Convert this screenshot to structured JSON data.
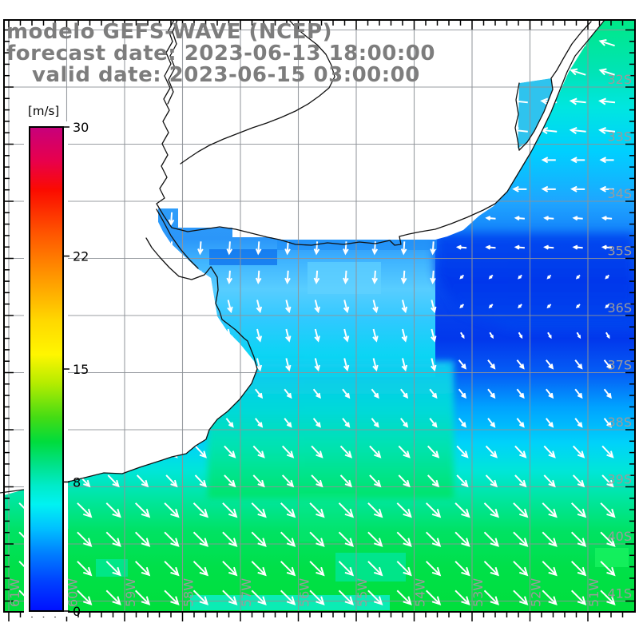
{
  "title": {
    "line1": "modelo GEFS-WAVE (NCEP)",
    "line2": "forecast date: 2023-06-13 18:00:00",
    "line3": "valid date: 2023-06-15 03:00:00",
    "color": "#7d7d7d"
  },
  "colorbar": {
    "unit_label": "[m/s]",
    "min": 0,
    "max": 30,
    "tick_values": [
      30,
      22,
      15,
      8,
      0
    ],
    "gradient": [
      [
        30,
        "#C7007C"
      ],
      [
        27.9,
        "#E8004C"
      ],
      [
        26.1,
        "#FB0B00"
      ],
      [
        23.4,
        "#FF5500"
      ],
      [
        21,
        "#FF9000"
      ],
      [
        18,
        "#FFD800"
      ],
      [
        15.9,
        "#FFF600"
      ],
      [
        14.1,
        "#B4EC00"
      ],
      [
        12,
        "#44DC14"
      ],
      [
        10.5,
        "#00DC3C"
      ],
      [
        9,
        "#00E28C"
      ],
      [
        7.8,
        "#00EBC8"
      ],
      [
        6.6,
        "#00F2F2"
      ],
      [
        5.1,
        "#00C0FF"
      ],
      [
        3.6,
        "#0080FF"
      ],
      [
        1.8,
        "#0040FF"
      ],
      [
        0,
        "#0010FF"
      ]
    ]
  },
  "axes": {
    "lon_labels": [
      "61W",
      "60W",
      "59W",
      "58W",
      "57W",
      "56W",
      "55W",
      "54W",
      "53W",
      "52W",
      "51W"
    ],
    "lat_labels": [
      "32S",
      "33S",
      "34S",
      "35S",
      "36S",
      "37S",
      "38S",
      "39S",
      "40S",
      "41S"
    ],
    "label_color": "#9b9b9b",
    "grid_color": "#8f9398",
    "frame_color": "#000000"
  },
  "chart_data": {
    "type": "heatmap",
    "title": "modelo GEFS-WAVE (NCEP)",
    "units": "m/s",
    "scale": {
      "min": 0,
      "max": 30,
      "ticks": [
        0,
        8,
        15,
        22,
        30
      ]
    },
    "region": "Rio de la Plata / SW Atlantic coast, 61W-51W, 31S-41.5S",
    "note": "speeds estimated from colorbar; arrows show direction",
    "field_gradient": [
      [
        0.0,
        "#00E887"
      ],
      [
        0.088,
        "#00E4B6"
      ],
      [
        0.148,
        "#00E6E0"
      ],
      [
        0.223,
        "#00CFFF"
      ],
      [
        0.31,
        "#1FA4FF"
      ],
      [
        0.385,
        "#0E72F8"
      ],
      [
        0.452,
        "#0548F0"
      ],
      [
        0.54,
        "#0238EC"
      ],
      [
        0.6,
        "#0560F6"
      ],
      [
        0.654,
        "#00A2FF"
      ],
      [
        0.715,
        "#00D2FA"
      ],
      [
        0.762,
        "#00E6D8"
      ],
      [
        0.81,
        "#00E69E"
      ],
      [
        0.864,
        "#00E263"
      ],
      [
        0.924,
        "#00E049"
      ],
      [
        1.0,
        "#00DF3C"
      ]
    ],
    "overlays": {
      "estuary_plume": [
        [
          0.0,
          "#2E9EFB"
        ],
        [
          0.2,
          "#2B96F9"
        ],
        [
          0.34,
          "#41B6FF"
        ],
        [
          0.49,
          "#58CDFF"
        ],
        [
          0.67,
          "#2FC9FF"
        ],
        [
          0.84,
          "#10D3F6"
        ],
        [
          1.0,
          "#03DAEE"
        ]
      ],
      "southwest_transition": [
        [
          0.0,
          "#14CDF4"
        ],
        [
          0.35,
          "#00DCD8"
        ],
        [
          0.65,
          "#00E4A8"
        ],
        [
          1.0,
          "#00E466"
        ]
      ],
      "offshore_low_core": [
        [
          0.0,
          "#0345EF"
        ],
        [
          0.5,
          "#0235EA"
        ],
        [
          1.0,
          "#0448F0"
        ]
      ]
    },
    "wind_field_regions": [
      {
        "name": "estuary-upper",
        "w": 58.7,
        "e": 53.3,
        "n": 33.87,
        "s": 35.78,
        "dir_deg": 94,
        "len": 15,
        "speed_ms": 5
      },
      {
        "name": "estuary-outer",
        "w": 58.7,
        "e": 53.3,
        "n": 35.78,
        "s": 37.03,
        "dir_deg": 76,
        "len": 15,
        "speed_ms": 6
      },
      {
        "name": "ne-31-32s",
        "w": 54.3,
        "e": 50.0,
        "n": 30.8,
        "s": 32.08,
        "dir_deg": 198,
        "len": 19,
        "speed_ms": 8
      },
      {
        "name": "ne-32-33s",
        "w": 54.3,
        "e": 50.0,
        "n": 32.08,
        "s": 33.13,
        "dir_deg": 186,
        "len": 19,
        "speed_ms": 8
      },
      {
        "name": "e-33-34s",
        "w": 54.3,
        "e": 50.0,
        "n": 33.13,
        "s": 34.08,
        "dir_deg": 181,
        "len": 16,
        "speed_ms": 7
      },
      {
        "name": "e-34-35s",
        "w": 54.3,
        "e": 50.0,
        "n": 34.08,
        "s": 35.09,
        "dir_deg": 184,
        "len": 11,
        "speed_ms": 5
      },
      {
        "name": "e-35-36s-calm",
        "w": 54.3,
        "e": 50.0,
        "n": 35.09,
        "s": 36.04,
        "dir_deg": 135,
        "len": 5,
        "speed_ms": 2
      },
      {
        "name": "e-36-36.7s",
        "w": 54.3,
        "e": 50.0,
        "n": 36.04,
        "s": 36.74,
        "dir_deg": 60,
        "len": 7,
        "speed_ms": 3
      },
      {
        "name": "s-36.7-38s",
        "w": 61.3,
        "e": 50.0,
        "n": 36.74,
        "s": 38.03,
        "dir_deg": 52,
        "len": 13,
        "speed_ms": 7
      },
      {
        "name": "s-38-39s",
        "w": 61.3,
        "e": 50.0,
        "n": 38.03,
        "s": 39.06,
        "dir_deg": 47,
        "len": 19,
        "speed_ms": 9
      },
      {
        "name": "s-39s-plus",
        "w": 61.3,
        "e": 50.0,
        "n": 39.06,
        "s": 41.4,
        "dir_deg": 45,
        "len": 24,
        "speed_ms": 11
      }
    ]
  }
}
